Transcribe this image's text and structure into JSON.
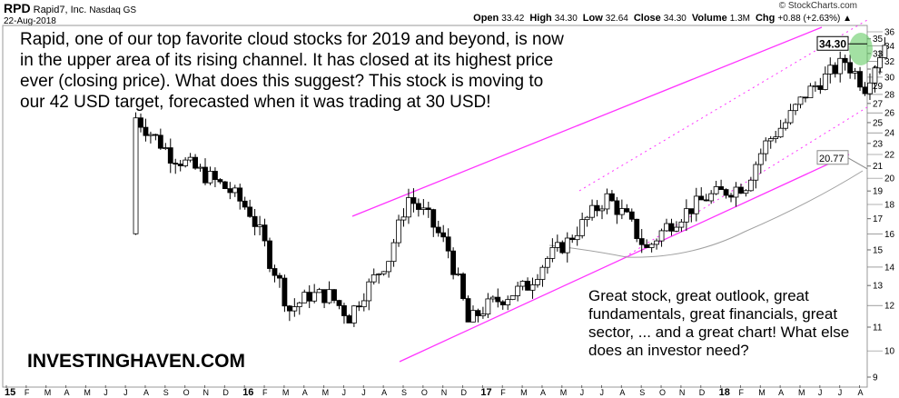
{
  "header": {
    "symbol": "RPD",
    "company": "Rapid7, Inc.",
    "exchange": "Nasdaq GS",
    "date": "22-Aug-2018",
    "source": "© StockCharts.com",
    "quote": [
      {
        "k": "Open",
        "v": "33.42"
      },
      {
        "k": "High",
        "v": "34.30"
      },
      {
        "k": "Low",
        "v": "32.64"
      },
      {
        "k": "Close",
        "v": "34.30"
      },
      {
        "k": "Volume",
        "v": "1.3M"
      },
      {
        "k": "Chg",
        "v": "+0.88 (+2.63%) ▲"
      }
    ]
  },
  "annotations": {
    "top": "Rapid, one of our top favorite cloud stocks for 2019 and beyond, is now in the upper area of its rising channel. It has closed at its highest price ever (closing price). What does this suggest? This stock is moving to our 42 USD target, forecasted when it was trading at 30 USD!",
    "bottom": "Great stock, great outlook, great fundamentals, great financials, great sector, ... and a great chart! What else does an investor need?",
    "brand": "INVESTINGHAVEN.COM"
  },
  "chart_data": {
    "type": "candlestick",
    "title": "RPD Rapid7, Inc. Nasdaq GS",
    "yscale": "log",
    "ylim": [
      9,
      36
    ],
    "yticks": [
      9,
      10,
      11,
      12,
      13,
      14,
      15,
      16,
      17,
      18,
      19,
      20,
      21,
      22,
      23,
      24,
      25,
      26,
      27,
      28,
      29,
      30,
      31,
      32,
      33,
      34,
      35,
      36
    ],
    "xticks": [
      "15",
      "F",
      "M",
      "A",
      "M",
      "J",
      "J",
      "A",
      "S",
      "O",
      "N",
      "D",
      "16",
      "F",
      "M",
      "A",
      "M",
      "J",
      "J",
      "A",
      "S",
      "O",
      "N",
      "D",
      "17",
      "F",
      "M",
      "A",
      "M",
      "J",
      "J",
      "A",
      "S",
      "O",
      "N",
      "D",
      "18",
      "F",
      "M",
      "A",
      "M",
      "J",
      "J",
      "A"
    ],
    "monthly_closes": {
      "start": "2015-07",
      "values": [
        24,
        22,
        21,
        20,
        19,
        17.5,
        14.5,
        11.8,
        12.5,
        12.5,
        11.5,
        13,
        14.5,
        18.5,
        17,
        15,
        11.2,
        12,
        12.5,
        13,
        14.5,
        15.5,
        17,
        18.5,
        17,
        15,
        16.5,
        17.5,
        18.5,
        19,
        19.5,
        23,
        25,
        28,
        30,
        32,
        29,
        34.3
      ]
    },
    "last_price": "34.30",
    "ma_value": "20.77",
    "colors": {
      "channel": "#ff33ff",
      "ma": "#a0a0a0",
      "highlight": "#66cc66"
    }
  }
}
